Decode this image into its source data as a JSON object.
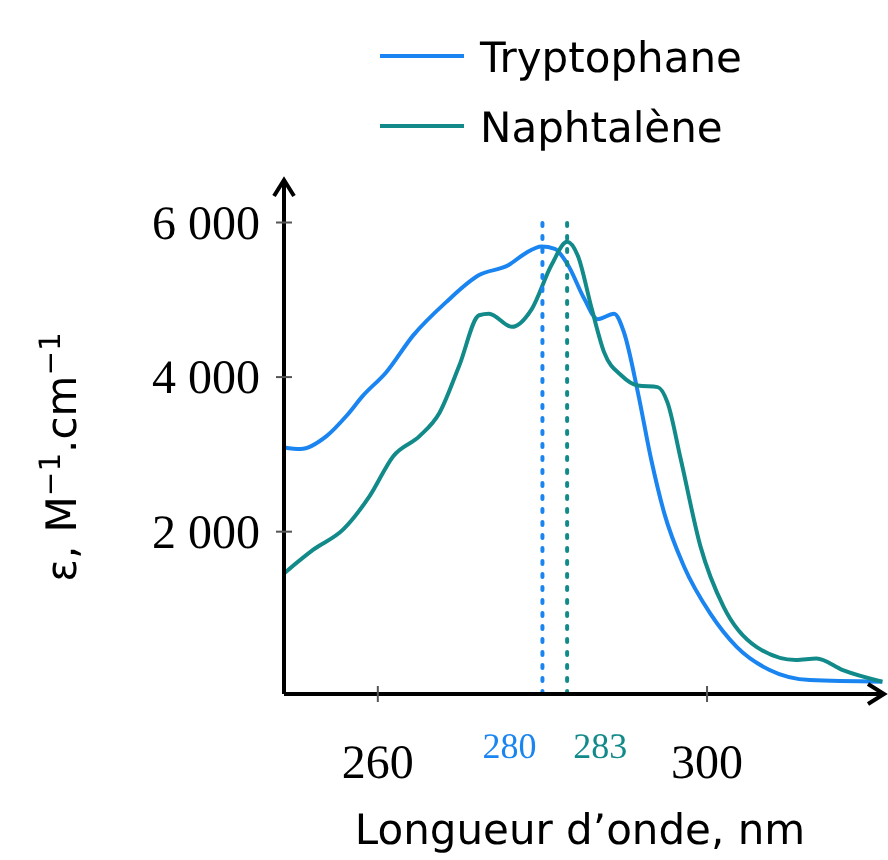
{
  "chart_data": {
    "type": "line",
    "xlabel": "Longueur d’onde, nm",
    "ylabel": "ε, M$^{−1}$.cm$^{−1}$",
    "xlim": [
      248.6,
      321.5
    ],
    "ylim": [
      -100,
      6550
    ],
    "xticks": [
      260,
      300
    ],
    "yticks": [
      {
        "value": 2000,
        "label": "2 000"
      },
      {
        "value": 4000,
        "label": "4 000"
      },
      {
        "value": 6000,
        "label": "6 000"
      }
    ],
    "grid": false,
    "legend": "top right",
    "marker": "none",
    "line_style": "solid",
    "series": [
      {
        "name": "Tryptophane",
        "color": "#1a85f0",
        "x": [
          248.6,
          250.6,
          253.8,
          256.2,
          258.2,
          261,
          264.3,
          268.3,
          272.3,
          275.9,
          277.9,
          279.9,
          281.5,
          283.1,
          285.1,
          286.7,
          288.7,
          289.9,
          291.6,
          293.2,
          294.8,
          297.2,
          300.4,
          303.6,
          307.6,
          312.5,
          321.3
        ],
        "values": [
          3090,
          3070,
          3240,
          3500,
          3760,
          4060,
          4540,
          4970,
          5320,
          5450,
          5600,
          5690,
          5660,
          5450,
          5010,
          4750,
          4820,
          4580,
          3800,
          2940,
          2240,
          1550,
          940,
          510,
          210,
          80,
          60
        ]
      },
      {
        "name": "Naphtalène",
        "color": "#128a8a",
        "x": [
          248.6,
          252.2,
          255.8,
          259,
          261.9,
          265.1,
          267.5,
          269.9,
          272.3,
          273.5,
          276.3,
          278.7,
          281.1,
          283,
          284.3,
          286,
          287.5,
          289.6,
          291.6,
          294,
          295.2,
          296.8,
          299.2,
          302,
          306,
          310.8,
          313.3,
          316.5,
          321.3
        ],
        "values": [
          1460,
          1770,
          2030,
          2460,
          2980,
          3240,
          3540,
          4150,
          4800,
          4820,
          4650,
          4880,
          5450,
          5750,
          5570,
          4880,
          4320,
          4020,
          3890,
          3870,
          3670,
          2940,
          1810,
          1030,
          510,
          340,
          360,
          210,
          60
        ]
      }
    ],
    "ref_lines": [
      {
        "axis": "x",
        "value": 280,
        "label": "280",
        "color": "#1a85f0",
        "line_style": "dotted"
      },
      {
        "axis": "x",
        "value": 283,
        "label": "283",
        "color": "#128a8a",
        "line_style": "dotted"
      }
    ]
  }
}
